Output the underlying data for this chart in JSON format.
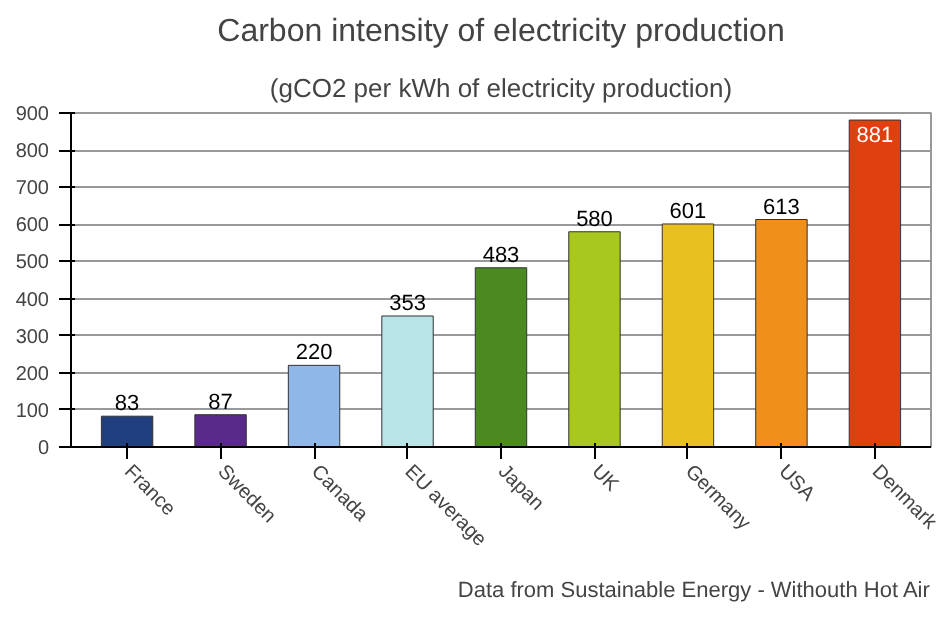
{
  "chart_data": {
    "type": "bar",
    "title": "Carbon intensity of electricity production",
    "subtitle": "(gCO2 per kWh of electricity production)",
    "categories": [
      "France",
      "Sweden",
      "Canada",
      "EU average",
      "Japan",
      "UK",
      "Germany",
      "USA",
      "Denmark"
    ],
    "values": [
      83,
      87,
      220,
      353,
      483,
      580,
      601,
      613,
      881
    ],
    "colors": [
      "#1f3f7f",
      "#5a2a8a",
      "#8fb8e8",
      "#b8e4e8",
      "#4a8a20",
      "#a8c820",
      "#e8c020",
      "#f0901a",
      "#e04010"
    ],
    "ylim": [
      0,
      900
    ],
    "yticks": [
      0,
      100,
      200,
      300,
      400,
      500,
      600,
      700,
      800,
      900
    ],
    "grid": "y",
    "data_labels": true,
    "annotations": [
      "Data from Sustainable Energy - Withouth Hot Air"
    ]
  }
}
